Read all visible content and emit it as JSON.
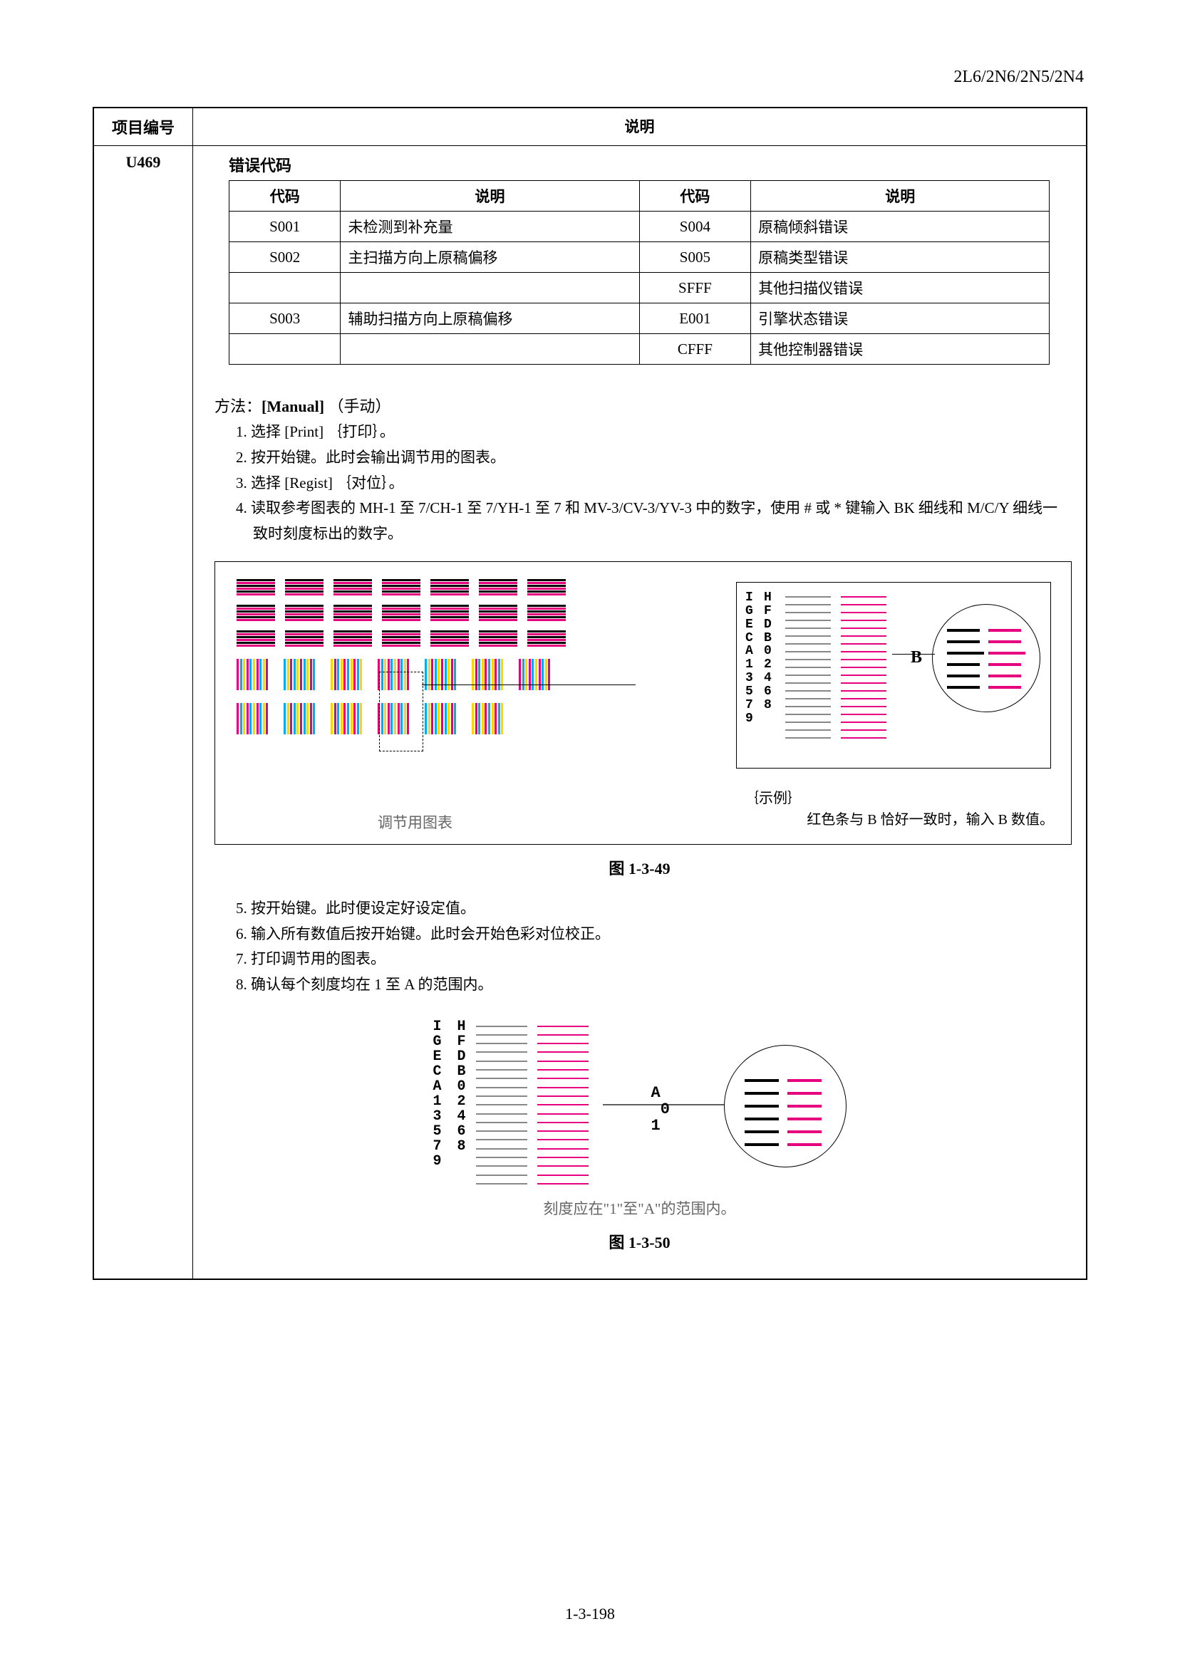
{
  "doc_header": "2L6/2N6/2N5/2N4",
  "page_footer": "1-3-198",
  "main_table": {
    "col1_header": "项目编号",
    "col2_header": "说明",
    "item_no": "U469"
  },
  "error_section": {
    "heading": "错误代码",
    "columns": [
      "代码",
      "说明",
      "代码",
      "说明"
    ],
    "rows": [
      [
        "S001",
        "未检测到补充量",
        "S004",
        "原稿倾斜错误"
      ],
      [
        "S002",
        "主扫描方向上原稿偏移",
        "S005",
        "原稿类型错误"
      ],
      [
        "",
        "",
        "SFFF",
        "其他扫描仪错误"
      ],
      [
        "S003",
        "辅助扫描方向上原稿偏移",
        "E001",
        "引擎状态错误"
      ],
      [
        "",
        "",
        "CFFF",
        "其他控制器错误"
      ]
    ]
  },
  "method": {
    "title_prefix": "方法：",
    "title_bold": "[Manual]",
    "title_suffix": " （手动）",
    "steps_a": [
      "1. 选择 [Print] ｛打印｝。",
      "2. 按开始键。此时会输出调节用的图表。",
      "3. 选择 [Regist] ｛对位｝。",
      "4. 读取参考图表的 MH-1 至 7/CH-1 至 7/YH-1 至 7 和 MV-3/CV-3/YV-3 中的数字，使用 # 或 * 键输入 BK 细线和 M/C/Y 细线一致时刻度标出的数字。"
    ],
    "steps_b": [
      "5. 按开始键。此时便设定好设定值。",
      "6. 输入所有数值后按开始键。此时会开始色彩对位校正。",
      "7. 打印调节用的图表。",
      "8. 确认每个刻度均在 1 至 A 的范围内。"
    ]
  },
  "figure1": {
    "caption": "图 1-3-49",
    "chart_label": "调节用图表",
    "scale_labels_left": "I\nG\nE\nC\nA\n1\n3\n5\n7\n9",
    "scale_labels_right": "H\nF\nD\nB\n0\n2\n4\n6\n8",
    "zoom_label": "B",
    "example_label": "｛示例｝",
    "example_text": "红色条与 B 恰好一致时，输入 B 数值。",
    "colors": {
      "magenta": "#e6007e",
      "cyan": "#00aeef",
      "yellow": "#ffd500",
      "gray": "#888888",
      "black": "#000000"
    },
    "strip_palettes": [
      [
        "#000000",
        "#e6007e"
      ],
      [
        "#000000",
        "#e6007e"
      ],
      [
        "#000000",
        "#e6007e"
      ],
      [
        "#000000",
        "#e6007e"
      ],
      [
        "#000000",
        "#e6007e"
      ],
      [
        "#000000",
        "#e6007e"
      ],
      [
        "#000000",
        "#e6007e"
      ]
    ]
  },
  "figure2": {
    "caption": "图 1-3-50",
    "range_text": "刻度应在\"1\"至\"A\"的范围内。",
    "scale_labels_left": "I\nG\nE\nC\nA\n1\n3\n5\n7\n9",
    "scale_labels_right": "H\nF\nD\nB\n0\n2\n4\n6\n8",
    "zoom_label": "A\n 0\n1",
    "colors": {
      "magenta": "#e6007e",
      "gray": "#888888",
      "black": "#000000"
    }
  }
}
